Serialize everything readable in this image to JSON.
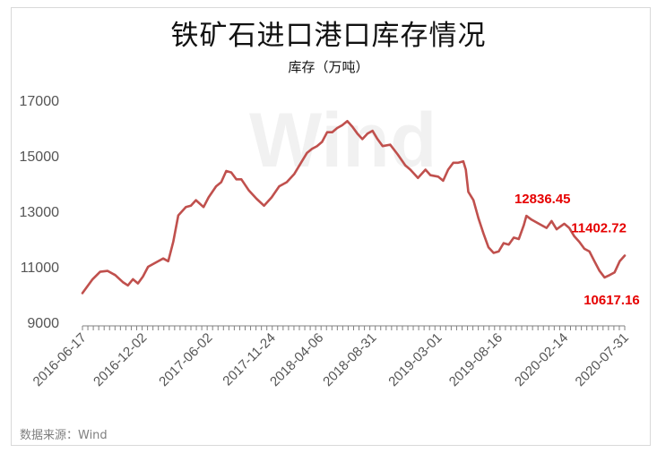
{
  "chart_data": {
    "type": "line",
    "title": "铁矿石进口港口库存情况",
    "subtitle": "库存（万吨）",
    "ylim": [
      9000,
      17000
    ],
    "yticks": [
      "17000",
      "15000",
      "13000",
      "11000",
      "9000"
    ],
    "xticks": [
      "2016-06-17",
      "2016-12-02",
      "2017-06-02",
      "2017-11-24",
      "2018-04-06",
      "2018-08-31",
      "2019-03-01",
      "2019-08-16",
      "2020-02-14",
      "2020-07-31"
    ],
    "grid": false,
    "line_color": "#c0504d",
    "annotations": [
      {
        "text": "12836.45",
        "x": "2019-11-01",
        "y": 12836.45
      },
      {
        "text": "11402.72",
        "x": "2020-07-31",
        "y": 11402.72
      },
      {
        "text": "10617.16",
        "x": "2020-06-05",
        "y": 10617.16
      }
    ],
    "series": [
      {
        "values": [
          [
            "2016-06-17",
            10050
          ],
          [
            "2016-07-15",
            10550
          ],
          [
            "2016-08-05",
            10820
          ],
          [
            "2016-08-26",
            10850
          ],
          [
            "2016-09-16",
            10700
          ],
          [
            "2016-10-07",
            10450
          ],
          [
            "2016-10-21",
            10330
          ],
          [
            "2016-11-04",
            10550
          ],
          [
            "2016-11-18",
            10400
          ],
          [
            "2016-12-02",
            10650
          ],
          [
            "2016-12-16",
            11000
          ],
          [
            "2017-01-06",
            11150
          ],
          [
            "2017-01-27",
            11300
          ],
          [
            "2017-02-10",
            11200
          ],
          [
            "2017-02-24",
            11900
          ],
          [
            "2017-03-10",
            12850
          ],
          [
            "2017-03-31",
            13150
          ],
          [
            "2017-04-14",
            13200
          ],
          [
            "2017-04-28",
            13400
          ],
          [
            "2017-05-19",
            13150
          ],
          [
            "2017-06-02",
            13500
          ],
          [
            "2017-06-23",
            13900
          ],
          [
            "2017-07-07",
            14050
          ],
          [
            "2017-07-21",
            14450
          ],
          [
            "2017-08-04",
            14400
          ],
          [
            "2017-08-18",
            14150
          ],
          [
            "2017-09-01",
            14150
          ],
          [
            "2017-09-22",
            13750
          ],
          [
            "2017-10-13",
            13450
          ],
          [
            "2017-11-03",
            13200
          ],
          [
            "2017-11-24",
            13500
          ],
          [
            "2017-12-15",
            13900
          ],
          [
            "2018-01-05",
            14050
          ],
          [
            "2018-01-26",
            14350
          ],
          [
            "2018-02-16",
            14800
          ],
          [
            "2018-03-02",
            15100
          ],
          [
            "2018-03-16",
            15250
          ],
          [
            "2018-03-30",
            15350
          ],
          [
            "2018-04-13",
            15500
          ],
          [
            "2018-04-27",
            15850
          ],
          [
            "2018-05-11",
            15850
          ],
          [
            "2018-05-25",
            16000
          ],
          [
            "2018-06-08",
            16100
          ],
          [
            "2018-06-22",
            16250
          ],
          [
            "2018-07-06",
            16050
          ],
          [
            "2018-07-20",
            15800
          ],
          [
            "2018-08-03",
            15600
          ],
          [
            "2018-08-17",
            15800
          ],
          [
            "2018-08-31",
            15900
          ],
          [
            "2018-09-14",
            15600
          ],
          [
            "2018-09-28",
            15350
          ],
          [
            "2018-10-19",
            15400
          ],
          [
            "2018-11-09",
            15050
          ],
          [
            "2018-11-30",
            14650
          ],
          [
            "2018-12-14",
            14500
          ],
          [
            "2019-01-04",
            14200
          ],
          [
            "2019-01-25",
            14500
          ],
          [
            "2019-02-08",
            14300
          ],
          [
            "2019-03-01",
            14250
          ],
          [
            "2019-03-15",
            14100
          ],
          [
            "2019-03-29",
            14500
          ],
          [
            "2019-04-12",
            14750
          ],
          [
            "2019-04-26",
            14750
          ],
          [
            "2019-05-10",
            14800
          ],
          [
            "2019-05-17",
            14500
          ],
          [
            "2019-05-24",
            13700
          ],
          [
            "2019-06-07",
            13400
          ],
          [
            "2019-06-21",
            12750
          ],
          [
            "2019-07-05",
            12200
          ],
          [
            "2019-07-19",
            11700
          ],
          [
            "2019-08-02",
            11500
          ],
          [
            "2019-08-16",
            11550
          ],
          [
            "2019-08-30",
            11850
          ],
          [
            "2019-09-13",
            11800
          ],
          [
            "2019-09-27",
            12050
          ],
          [
            "2019-10-11",
            12000
          ],
          [
            "2019-10-25",
            12500
          ],
          [
            "2019-11-01",
            12836.45
          ],
          [
            "2019-11-15",
            12700
          ],
          [
            "2019-11-29",
            12600
          ],
          [
            "2019-12-13",
            12500
          ],
          [
            "2019-12-27",
            12400
          ],
          [
            "2020-01-10",
            12650
          ],
          [
            "2020-01-24",
            12350
          ],
          [
            "2020-02-14",
            12550
          ],
          [
            "2020-02-28",
            12400
          ],
          [
            "2020-03-13",
            12100
          ],
          [
            "2020-03-27",
            11900
          ],
          [
            "2020-04-10",
            11650
          ],
          [
            "2020-04-24",
            11550
          ],
          [
            "2020-05-08",
            11200
          ],
          [
            "2020-05-22",
            10850
          ],
          [
            "2020-06-05",
            10617.16
          ],
          [
            "2020-06-19",
            10700
          ],
          [
            "2020-07-03",
            10800
          ],
          [
            "2020-07-17",
            11200
          ],
          [
            "2020-07-31",
            11402.72
          ]
        ]
      }
    ]
  },
  "source_label": "数据来源：Wind",
  "watermark_text": "Wind"
}
